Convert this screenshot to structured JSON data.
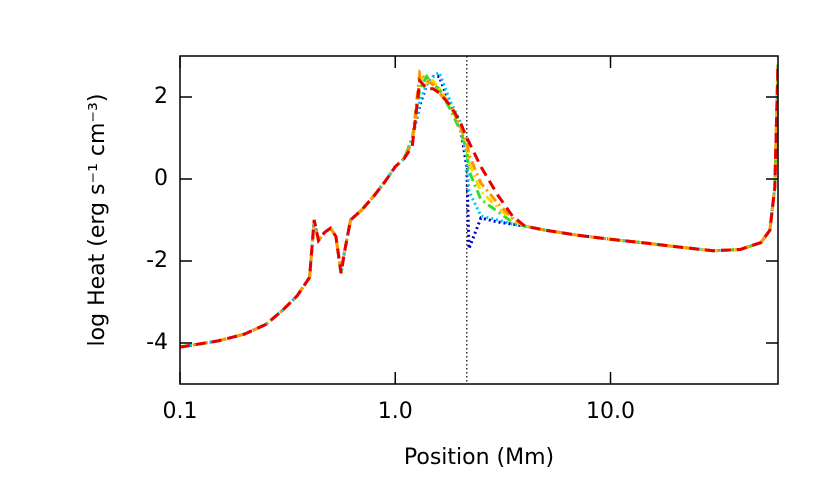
{
  "chart_data": {
    "type": "line",
    "xlabel": "Position (Mm)",
    "ylabel": "log Heat (erg s⁻¹ cm⁻³)",
    "xscale": "log",
    "xlim": [
      0.1,
      60
    ],
    "xticks": [
      0.1,
      {
        "value": 1,
        "label": "1.0"
      },
      {
        "value": 10,
        "label": "10.0"
      }
    ],
    "ylim": [
      -5,
      3
    ],
    "yticks": [
      -4,
      -2,
      0,
      2
    ],
    "reference_line_x": 2.15,
    "x": [
      0.1,
      0.15,
      0.2,
      0.25,
      0.3,
      0.35,
      0.4,
      0.42,
      0.44,
      0.47,
      0.5,
      0.53,
      0.56,
      0.58,
      0.62,
      0.7,
      0.8,
      0.9,
      1.0,
      1.1,
      1.2,
      1.3,
      1.4,
      1.5,
      1.6,
      1.8,
      2.0,
      2.15,
      2.2,
      2.5,
      3.0,
      3.5,
      4.0,
      5,
      7,
      10,
      15,
      20,
      30,
      40,
      50,
      55,
      58,
      60
    ],
    "series": [
      {
        "color": "#0000c8",
        "style": "dotted",
        "values": [
          -4.1,
          -3.95,
          -3.78,
          -3.55,
          -3.2,
          -2.85,
          -2.4,
          -1.0,
          -1.5,
          -1.3,
          -1.2,
          -1.4,
          -2.3,
          -1.8,
          -1.0,
          -0.75,
          -0.4,
          -0.05,
          0.3,
          0.5,
          1.0,
          1.8,
          2.3,
          2.5,
          2.5,
          1.8,
          1.3,
          0.3,
          -1.7,
          -0.95,
          -1.05,
          -1.1,
          -1.15,
          -1.25,
          -1.37,
          -1.47,
          -1.57,
          -1.65,
          -1.75,
          -1.72,
          -1.55,
          -1.25,
          -0.2,
          2.8
        ]
      },
      {
        "color": "#00c8ff",
        "style": "dotted",
        "values": [
          -4.1,
          -3.95,
          -3.78,
          -3.55,
          -3.2,
          -2.85,
          -2.4,
          -1.0,
          -1.5,
          -1.3,
          -1.2,
          -1.4,
          -2.3,
          -1.8,
          -1.0,
          -0.75,
          -0.4,
          -0.05,
          0.3,
          0.5,
          1.0,
          1.9,
          2.3,
          2.5,
          2.6,
          1.9,
          1.4,
          0.5,
          -0.3,
          -0.9,
          -1.0,
          -1.1,
          -1.15,
          -1.25,
          -1.37,
          -1.47,
          -1.57,
          -1.65,
          -1.75,
          -1.72,
          -1.55,
          -1.25,
          -0.2,
          2.8
        ]
      },
      {
        "color": "#32dc32",
        "style": "dashdot",
        "values": [
          -4.1,
          -3.95,
          -3.78,
          -3.55,
          -3.2,
          -2.85,
          -2.4,
          -1.0,
          -1.5,
          -1.3,
          -1.2,
          -1.4,
          -2.3,
          -1.8,
          -1.0,
          -0.75,
          -0.4,
          -0.05,
          0.3,
          0.5,
          1.0,
          2.2,
          2.5,
          2.3,
          2.2,
          1.7,
          1.2,
          0.7,
          0.2,
          -0.5,
          -0.8,
          -1.05,
          -1.15,
          -1.25,
          -1.37,
          -1.47,
          -1.57,
          -1.65,
          -1.75,
          -1.72,
          -1.55,
          -1.25,
          -0.2,
          2.8
        ]
      },
      {
        "color": "#ffd700",
        "style": "dashdot",
        "values": [
          -4.1,
          -3.95,
          -3.78,
          -3.55,
          -3.2,
          -2.85,
          -2.4,
          -1.0,
          -1.5,
          -1.3,
          -1.2,
          -1.4,
          -2.3,
          -1.8,
          -1.0,
          -0.75,
          -0.4,
          -0.05,
          0.3,
          0.5,
          0.9,
          2.5,
          2.3,
          2.4,
          2.2,
          1.8,
          1.3,
          0.8,
          0.4,
          -0.3,
          -0.7,
          -1.0,
          -1.15,
          -1.25,
          -1.37,
          -1.47,
          -1.57,
          -1.65,
          -1.75,
          -1.72,
          -1.55,
          -1.25,
          -0.2,
          2.8
        ]
      },
      {
        "color": "#ff9600",
        "style": "dashdot",
        "values": [
          -4.1,
          -3.95,
          -3.78,
          -3.55,
          -3.2,
          -2.85,
          -2.4,
          -1.0,
          -1.5,
          -1.3,
          -1.2,
          -1.4,
          -2.3,
          -1.8,
          -1.0,
          -0.75,
          -0.4,
          -0.05,
          0.3,
          0.5,
          0.9,
          2.6,
          2.4,
          2.3,
          2.1,
          1.8,
          1.3,
          0.9,
          0.6,
          -0.1,
          -0.6,
          -0.95,
          -1.15,
          -1.25,
          -1.37,
          -1.47,
          -1.57,
          -1.65,
          -1.75,
          -1.72,
          -1.55,
          -1.25,
          -0.2,
          2.8
        ]
      },
      {
        "color": "#e60000",
        "style": "dashed",
        "values": [
          -4.1,
          -3.95,
          -3.78,
          -3.55,
          -3.2,
          -2.85,
          -2.4,
          -1.0,
          -1.5,
          -1.3,
          -1.2,
          -1.4,
          -2.3,
          -1.8,
          -1.0,
          -0.75,
          -0.4,
          -0.05,
          0.3,
          0.5,
          0.8,
          2.4,
          2.2,
          2.2,
          2.1,
          1.8,
          1.4,
          1.0,
          0.9,
          0.3,
          -0.4,
          -0.9,
          -1.15,
          -1.25,
          -1.37,
          -1.47,
          -1.57,
          -1.65,
          -1.75,
          -1.72,
          -1.55,
          -1.25,
          -0.2,
          2.8
        ]
      }
    ]
  }
}
